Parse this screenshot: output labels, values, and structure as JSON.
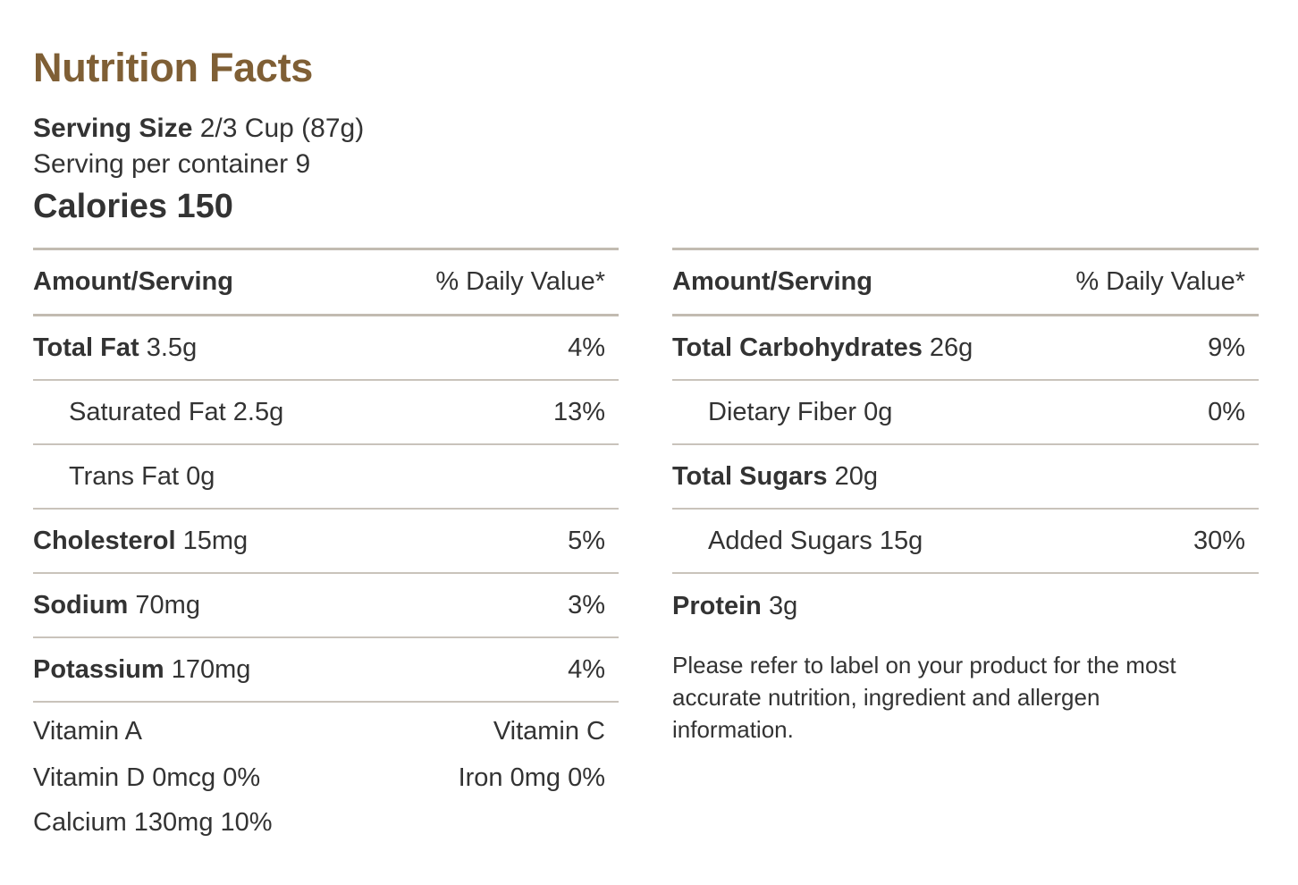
{
  "title": "Nutrition Facts",
  "serving": {
    "size_label": "Serving Size",
    "size_value": "2/3 Cup (87g)",
    "per_container": "Serving per container 9"
  },
  "calories": "Calories 150",
  "headers": {
    "amount": "Amount/Serving",
    "daily_value": "% Daily Value*"
  },
  "left_rows": [
    {
      "name": "Total Fat",
      "amount": "3.5g",
      "dv": "4%"
    },
    {
      "name": "Saturated Fat",
      "amount": "2.5g",
      "dv": "13%"
    },
    {
      "name": "Trans Fat",
      "amount": "0g",
      "dv": ""
    },
    {
      "name": "Cholesterol",
      "amount": "15mg",
      "dv": "5%"
    },
    {
      "name": "Sodium",
      "amount": "70mg",
      "dv": "3%"
    },
    {
      "name": "Potassium",
      "amount": "170mg",
      "dv": "4%"
    }
  ],
  "vitamins": {
    "vitamin_a": "Vitamin A",
    "vitamin_c": "Vitamin C",
    "vitamin_d": "Vitamin D 0mcg 0%",
    "iron": "Iron 0mg 0%",
    "calcium": "Calcium 130mg 10%"
  },
  "right_rows": [
    {
      "name": "Total Carbohydrates",
      "amount": "26g",
      "dv": "9%"
    },
    {
      "name": "Dietary Fiber",
      "amount": "0g",
      "dv": "0%"
    },
    {
      "name": "Total Sugars",
      "amount": "20g",
      "dv": ""
    },
    {
      "name": "Added Sugars",
      "amount": "15g",
      "dv": "30%"
    },
    {
      "name": "Protein",
      "amount": "3g",
      "dv": ""
    }
  ],
  "note": "Please refer to label on your product for the most accurate nutrition, ingredient and allergen information.",
  "colors": {
    "title": "#7f5f35",
    "text": "#333333",
    "rule": "#c2bbb1"
  }
}
